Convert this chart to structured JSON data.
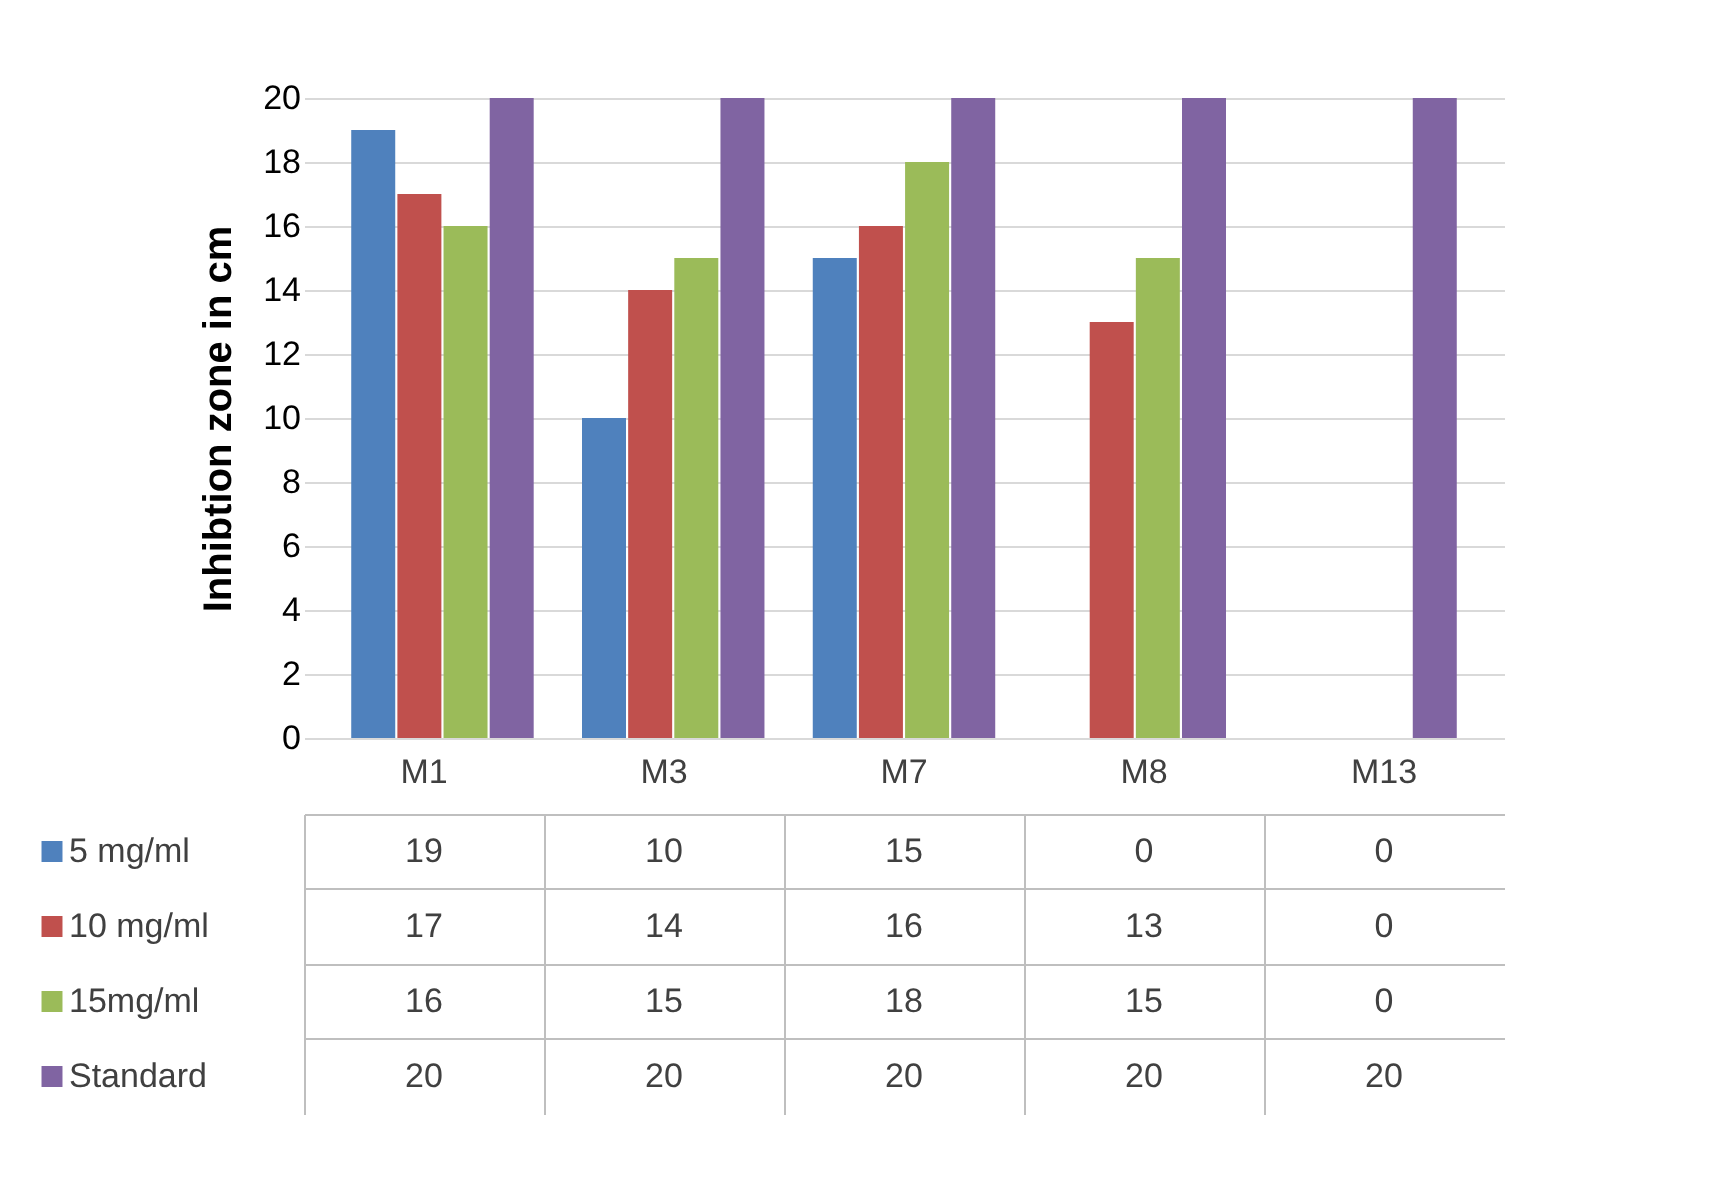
{
  "chart_data": {
    "type": "bar",
    "ylabel": "Inhibtion zone in cm",
    "categories": [
      "M1",
      "M3",
      "M7",
      "M8",
      "M13"
    ],
    "series": [
      {
        "name": "5 mg/ml",
        "color": "#4f81bd",
        "values": [
          19,
          10,
          15,
          0,
          0
        ]
      },
      {
        "name": "10 mg/ml",
        "color": "#c0504d",
        "values": [
          17,
          14,
          16,
          13,
          0
        ]
      },
      {
        "name": "15mg/ml",
        "color": "#9bbb59",
        "values": [
          16,
          15,
          18,
          15,
          0
        ]
      },
      {
        "name": "Standard",
        "color": "#8064a2",
        "values": [
          20,
          20,
          20,
          20,
          20
        ]
      }
    ],
    "ylim": [
      0,
      20
    ],
    "yticks": [
      0,
      2,
      4,
      6,
      8,
      10,
      12,
      14,
      16,
      18,
      20
    ],
    "grid": "y",
    "legend": "bottom",
    "data_labels": true
  }
}
